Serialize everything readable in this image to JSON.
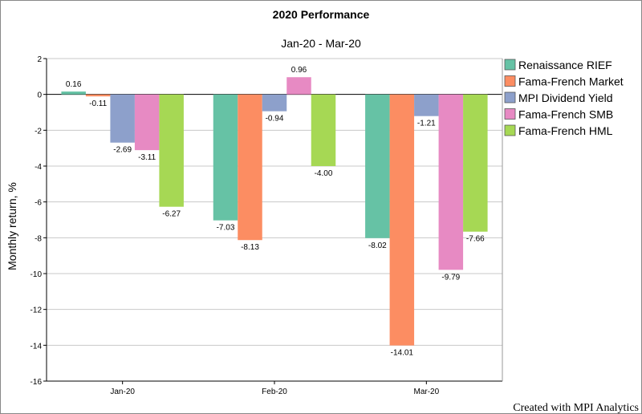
{
  "chart_data": {
    "type": "bar",
    "title": "2020 Performance",
    "subtitle": "Jan-20 - Mar-20",
    "ylabel": "Monthly return, %",
    "xlabel": "",
    "categories": [
      "Jan-20",
      "Feb-20",
      "Mar-20"
    ],
    "ylim": [
      -16,
      2
    ],
    "yticks": [
      2,
      0,
      -2,
      -4,
      -6,
      -8,
      -10,
      -12,
      -14,
      -16
    ],
    "grid": true,
    "legend_position": "right",
    "series": [
      {
        "name": "Renaissance RIEF",
        "color": "#66c2a5",
        "values": [
          0.16,
          -7.03,
          -8.02
        ],
        "labels": [
          "0.16",
          "-7.03",
          "-8.02"
        ]
      },
      {
        "name": "Fama-French Market",
        "color": "#fc8d62",
        "values": [
          -0.11,
          -8.13,
          -14.01
        ],
        "labels": [
          "-0.11",
          "-8.13",
          "-14.01"
        ]
      },
      {
        "name": "MPI Dividend Yield",
        "color": "#8da0cb",
        "values": [
          -2.69,
          -0.94,
          -1.21
        ],
        "labels": [
          "-2.69",
          "-0.94",
          "-1.21"
        ]
      },
      {
        "name": "Fama-French SMB",
        "color": "#e78ac3",
        "values": [
          -3.11,
          0.96,
          -9.79
        ],
        "labels": [
          "-3.11",
          "0.96",
          "-9.79"
        ]
      },
      {
        "name": "Fama-French HML",
        "color": "#a6d854",
        "values": [
          -6.27,
          -4.0,
          -7.66
        ],
        "labels": [
          "-6.27",
          "-4.00",
          "-7.66"
        ]
      }
    ],
    "credit": "Created with MPI Analytics"
  }
}
